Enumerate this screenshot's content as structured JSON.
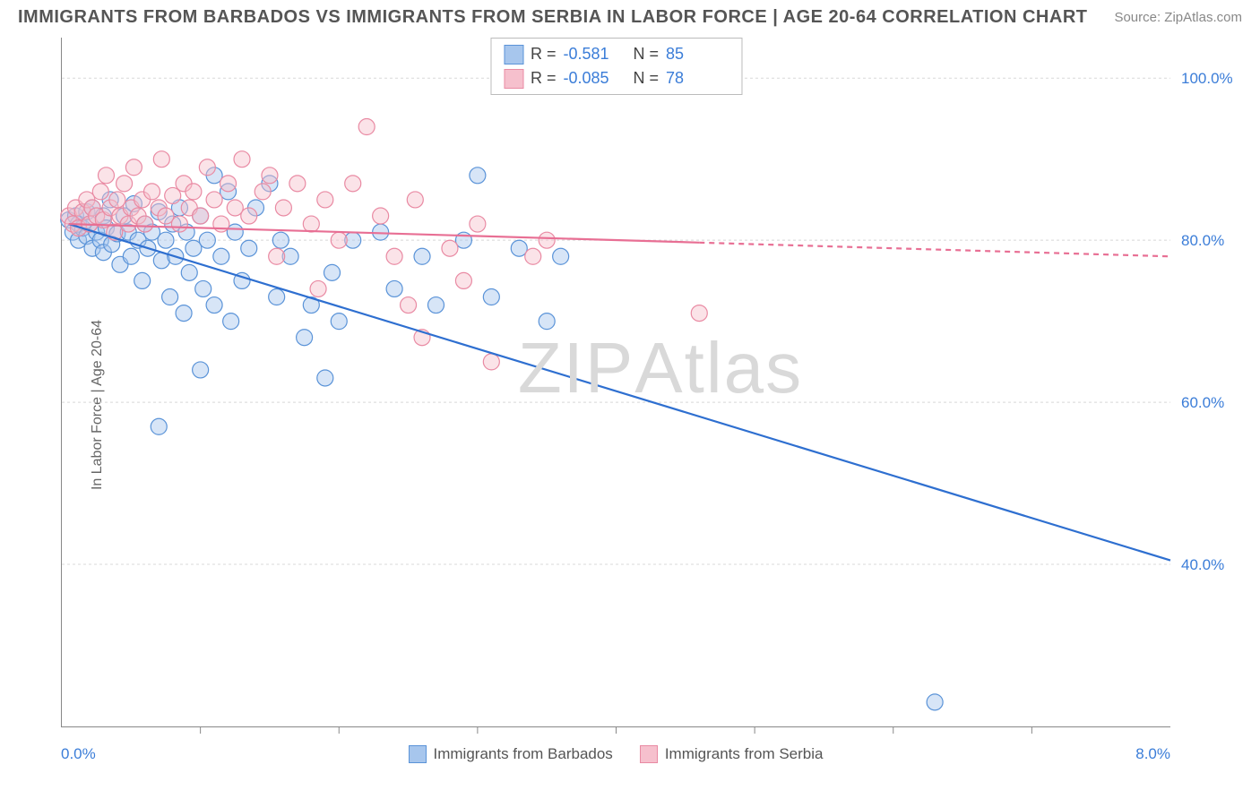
{
  "title": "IMMIGRANTS FROM BARBADOS VS IMMIGRANTS FROM SERBIA IN LABOR FORCE | AGE 20-64 CORRELATION CHART",
  "source": "Source: ZipAtlas.com",
  "ylabel": "In Labor Force | Age 20-64",
  "watermark": "ZIPAtlas",
  "chart": {
    "type": "scatter",
    "background_color": "#ffffff",
    "grid_color": "#d8d8d8",
    "axis_color": "#888888",
    "axis_label_color": "#3b7dd8",
    "text_color": "#555555",
    "xlim": [
      0.0,
      8.0
    ],
    "ylim": [
      20.0,
      105.0
    ],
    "x_min_label": "0.0%",
    "x_max_label": "8.0%",
    "x_ticks": [
      1.0,
      2.0,
      3.0,
      4.0,
      5.0,
      6.0,
      7.0
    ],
    "y_ticks": [
      {
        "v": 100.0,
        "label": "100.0%"
      },
      {
        "v": 80.0,
        "label": "80.0%"
      },
      {
        "v": 60.0,
        "label": "60.0%"
      },
      {
        "v": 40.0,
        "label": "40.0%"
      }
    ],
    "marker_radius": 9,
    "marker_opacity": 0.45,
    "marker_stroke_width": 1.2,
    "trend_line_width": 2.2,
    "series": [
      {
        "name": "Immigrants from Barbados",
        "fill_color": "#a7c6ed",
        "stroke_color": "#5a93d8",
        "line_color": "#2e6fd0",
        "R": "-0.581",
        "N": "85",
        "trend": {
          "x1": 0.05,
          "y1": 82.0,
          "x2": 8.0,
          "y2": 40.5,
          "solid_until_x": 8.0
        },
        "points": [
          [
            0.05,
            82.5
          ],
          [
            0.08,
            81.0
          ],
          [
            0.1,
            83.0
          ],
          [
            0.12,
            80.0
          ],
          [
            0.12,
            82.0
          ],
          [
            0.15,
            81.5
          ],
          [
            0.18,
            83.5
          ],
          [
            0.18,
            80.5
          ],
          [
            0.2,
            82.0
          ],
          [
            0.22,
            79.0
          ],
          [
            0.22,
            84.0
          ],
          [
            0.25,
            81.0
          ],
          [
            0.28,
            80.0
          ],
          [
            0.3,
            83.0
          ],
          [
            0.3,
            78.5
          ],
          [
            0.32,
            81.5
          ],
          [
            0.35,
            85.0
          ],
          [
            0.36,
            79.5
          ],
          [
            0.4,
            80.8
          ],
          [
            0.42,
            77.0
          ],
          [
            0.45,
            83.0
          ],
          [
            0.48,
            81.0
          ],
          [
            0.5,
            78.0
          ],
          [
            0.52,
            84.5
          ],
          [
            0.55,
            80.0
          ],
          [
            0.58,
            75.0
          ],
          [
            0.6,
            82.0
          ],
          [
            0.62,
            79.0
          ],
          [
            0.65,
            81.0
          ],
          [
            0.7,
            83.5
          ],
          [
            0.72,
            77.5
          ],
          [
            0.75,
            80.0
          ],
          [
            0.78,
            73.0
          ],
          [
            0.8,
            82.0
          ],
          [
            0.82,
            78.0
          ],
          [
            0.85,
            84.0
          ],
          [
            0.88,
            71.0
          ],
          [
            0.9,
            81.0
          ],
          [
            0.92,
            76.0
          ],
          [
            0.95,
            79.0
          ],
          [
            1.0,
            83.0
          ],
          [
            1.02,
            74.0
          ],
          [
            1.05,
            80.0
          ],
          [
            1.1,
            88.0
          ],
          [
            1.1,
            72.0
          ],
          [
            1.15,
            78.0
          ],
          [
            1.2,
            86.0
          ],
          [
            1.22,
            70.0
          ],
          [
            1.25,
            81.0
          ],
          [
            1.3,
            75.0
          ],
          [
            1.35,
            79.0
          ],
          [
            1.4,
            84.0
          ],
          [
            1.5,
            87.0
          ],
          [
            1.55,
            73.0
          ],
          [
            1.58,
            80.0
          ],
          [
            1.65,
            78.0
          ],
          [
            1.75,
            68.0
          ],
          [
            1.8,
            72.0
          ],
          [
            1.9,
            63.0
          ],
          [
            1.95,
            76.0
          ],
          [
            2.0,
            70.0
          ],
          [
            2.1,
            80.0
          ],
          [
            2.3,
            81.0
          ],
          [
            2.4,
            74.0
          ],
          [
            2.6,
            78.0
          ],
          [
            2.7,
            72.0
          ],
          [
            2.9,
            80.0
          ],
          [
            3.0,
            88.0
          ],
          [
            3.1,
            73.0
          ],
          [
            3.3,
            79.0
          ],
          [
            3.5,
            70.0
          ],
          [
            3.6,
            78.0
          ],
          [
            0.7,
            57.0
          ],
          [
            1.0,
            64.0
          ],
          [
            6.3,
            23.0
          ]
        ]
      },
      {
        "name": "Immigrants from Serbia",
        "fill_color": "#f6c0cd",
        "stroke_color": "#e98aa3",
        "line_color": "#e86f94",
        "R": "-0.085",
        "N": "78",
        "trend": {
          "x1": 0.05,
          "y1": 82.0,
          "x2": 8.0,
          "y2": 78.0,
          "solid_until_x": 4.6
        },
        "points": [
          [
            0.05,
            83.0
          ],
          [
            0.08,
            82.0
          ],
          [
            0.1,
            84.0
          ],
          [
            0.12,
            81.5
          ],
          [
            0.15,
            83.5
          ],
          [
            0.18,
            85.0
          ],
          [
            0.2,
            82.0
          ],
          [
            0.22,
            84.0
          ],
          [
            0.25,
            83.0
          ],
          [
            0.28,
            86.0
          ],
          [
            0.3,
            82.5
          ],
          [
            0.32,
            88.0
          ],
          [
            0.35,
            84.0
          ],
          [
            0.38,
            81.0
          ],
          [
            0.4,
            85.0
          ],
          [
            0.42,
            83.0
          ],
          [
            0.45,
            87.0
          ],
          [
            0.48,
            82.0
          ],
          [
            0.5,
            84.0
          ],
          [
            0.52,
            89.0
          ],
          [
            0.55,
            83.0
          ],
          [
            0.58,
            85.0
          ],
          [
            0.6,
            82.0
          ],
          [
            0.65,
            86.0
          ],
          [
            0.7,
            84.0
          ],
          [
            0.72,
            90.0
          ],
          [
            0.75,
            83.0
          ],
          [
            0.8,
            85.5
          ],
          [
            0.85,
            82.0
          ],
          [
            0.88,
            87.0
          ],
          [
            0.92,
            84.0
          ],
          [
            0.95,
            86.0
          ],
          [
            1.0,
            83.0
          ],
          [
            1.05,
            89.0
          ],
          [
            1.1,
            85.0
          ],
          [
            1.15,
            82.0
          ],
          [
            1.2,
            87.0
          ],
          [
            1.25,
            84.0
          ],
          [
            1.3,
            90.0
          ],
          [
            1.35,
            83.0
          ],
          [
            1.45,
            86.0
          ],
          [
            1.5,
            88.0
          ],
          [
            1.55,
            78.0
          ],
          [
            1.6,
            84.0
          ],
          [
            1.7,
            87.0
          ],
          [
            1.8,
            82.0
          ],
          [
            1.85,
            74.0
          ],
          [
            1.9,
            85.0
          ],
          [
            2.0,
            80.0
          ],
          [
            2.1,
            87.0
          ],
          [
            2.2,
            94.0
          ],
          [
            2.3,
            83.0
          ],
          [
            2.4,
            78.0
          ],
          [
            2.5,
            72.0
          ],
          [
            2.55,
            85.0
          ],
          [
            2.6,
            68.0
          ],
          [
            2.8,
            79.0
          ],
          [
            2.9,
            75.0
          ],
          [
            3.0,
            82.0
          ],
          [
            3.1,
            65.0
          ],
          [
            3.4,
            78.0
          ],
          [
            3.5,
            80.0
          ],
          [
            4.6,
            71.0
          ]
        ]
      }
    ]
  },
  "legend": {
    "barbados": "Immigrants from Barbados",
    "serbia": "Immigrants from Serbia"
  },
  "stats_labels": {
    "R": "R  =",
    "N": "N  ="
  }
}
